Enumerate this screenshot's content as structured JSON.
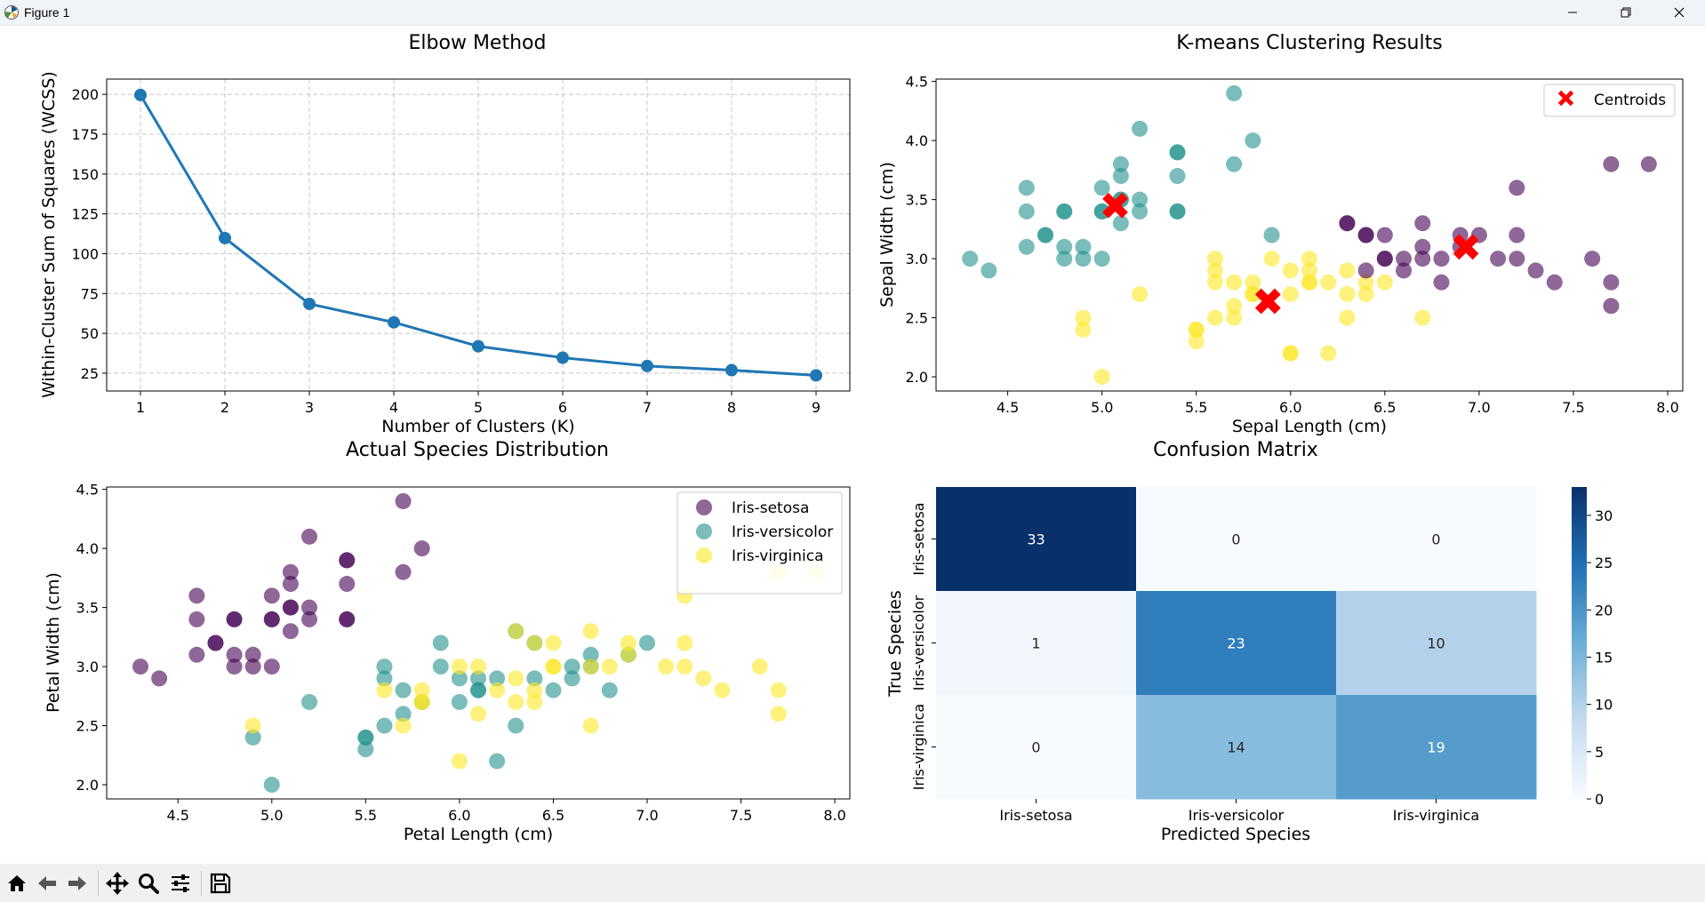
{
  "window": {
    "title": "Figure 1"
  },
  "toolbar": {
    "buttons": [
      "home-icon",
      "back-arrow-icon",
      "forward-arrow-icon",
      "pan-icon",
      "zoom-icon",
      "configure-icon",
      "save-icon"
    ]
  },
  "chart_data": [
    {
      "type": "line",
      "title": "Elbow Method",
      "xlabel": "Number of Clusters (K)",
      "ylabel": "Within-Cluster Sum of Squares (WCSS)",
      "x": [
        1,
        2,
        3,
        4,
        5,
        6,
        7,
        8,
        9
      ],
      "values": [
        199.6,
        109.8,
        68.5,
        56.9,
        41.9,
        34.7,
        29.5,
        26.9,
        23.6
      ],
      "xticks": [
        1,
        2,
        3,
        4,
        5,
        6,
        7,
        8,
        9
      ],
      "yticks": [
        25,
        50,
        75,
        100,
        125,
        150,
        175,
        200
      ],
      "xlim": [
        0.6,
        9.4
      ],
      "ylim": [
        13.8,
        209.6
      ],
      "grid": true,
      "color": "#1f77b4"
    },
    {
      "type": "scatter",
      "title": "K-means Clustering Results",
      "xlabel": "Sepal Length (cm)",
      "ylabel": "Sepal Width (cm)",
      "xticks": [
        4.5,
        5.0,
        5.5,
        6.0,
        6.5,
        7.0,
        7.5,
        8.0
      ],
      "yticks": [
        2.0,
        2.5,
        3.0,
        3.5,
        4.0,
        4.5
      ],
      "xlim": [
        4.12,
        8.08
      ],
      "ylim": [
        1.88,
        4.52
      ],
      "legend": {
        "placement": "upper right",
        "entries": [
          "Centroids"
        ]
      },
      "cluster_colors": [
        "#440154",
        "#21918c",
        "#fde725"
      ],
      "centroid_color": "#ff0000",
      "centroids": [
        [
          5.07,
          3.45
        ],
        [
          5.88,
          2.64
        ],
        [
          6.93,
          3.1
        ]
      ],
      "points": [
        [
          4.3,
          3.0,
          1
        ],
        [
          4.4,
          2.9,
          1
        ],
        [
          4.6,
          3.6,
          1
        ],
        [
          4.6,
          3.4,
          1
        ],
        [
          4.6,
          3.1,
          1
        ],
        [
          4.7,
          3.2,
          1
        ],
        [
          4.7,
          3.2,
          1
        ],
        [
          4.8,
          3.4,
          1
        ],
        [
          4.8,
          3.4,
          1
        ],
        [
          4.8,
          3.1,
          1
        ],
        [
          4.8,
          3.0,
          1
        ],
        [
          4.9,
          3.1,
          1
        ],
        [
          4.9,
          3.0,
          1
        ],
        [
          5.0,
          3.6,
          1
        ],
        [
          5.0,
          3.4,
          1
        ],
        [
          5.0,
          3.4,
          1
        ],
        [
          5.0,
          3.0,
          1
        ],
        [
          5.1,
          3.5,
          1
        ],
        [
          5.1,
          3.8,
          1
        ],
        [
          5.1,
          3.7,
          1
        ],
        [
          5.1,
          3.3,
          1
        ],
        [
          5.1,
          3.5,
          1
        ],
        [
          5.2,
          3.5,
          1
        ],
        [
          5.2,
          3.4,
          1
        ],
        [
          5.2,
          4.1,
          1
        ],
        [
          5.4,
          3.9,
          1
        ],
        [
          5.4,
          3.9,
          1
        ],
        [
          5.4,
          3.7,
          1
        ],
        [
          5.4,
          3.4,
          1
        ],
        [
          5.4,
          3.4,
          1
        ],
        [
          5.7,
          4.4,
          1
        ],
        [
          5.7,
          3.8,
          1
        ],
        [
          5.8,
          4.0,
          1
        ],
        [
          5.9,
          3.2,
          1
        ],
        [
          4.9,
          2.5,
          2
        ],
        [
          4.9,
          2.4,
          2
        ],
        [
          5.0,
          2.0,
          2
        ],
        [
          5.2,
          2.7,
          2
        ],
        [
          5.5,
          2.4,
          2
        ],
        [
          5.5,
          2.4,
          2
        ],
        [
          5.5,
          2.3,
          2
        ],
        [
          5.6,
          3.0,
          2
        ],
        [
          5.6,
          2.9,
          2
        ],
        [
          5.6,
          2.8,
          2
        ],
        [
          5.6,
          2.5,
          2
        ],
        [
          5.7,
          2.8,
          2
        ],
        [
          5.7,
          2.6,
          2
        ],
        [
          5.7,
          2.5,
          2
        ],
        [
          5.8,
          2.8,
          2
        ],
        [
          5.8,
          2.7,
          2
        ],
        [
          5.8,
          2.7,
          2
        ],
        [
          5.9,
          3.0,
          2
        ],
        [
          6.0,
          2.9,
          2
        ],
        [
          6.0,
          2.7,
          2
        ],
        [
          6.0,
          2.2,
          2
        ],
        [
          6.0,
          2.2,
          2
        ],
        [
          6.1,
          3.0,
          2
        ],
        [
          6.1,
          2.9,
          2
        ],
        [
          6.1,
          2.8,
          2
        ],
        [
          6.1,
          2.8,
          2
        ],
        [
          6.2,
          2.8,
          2
        ],
        [
          6.2,
          2.2,
          2
        ],
        [
          6.3,
          2.9,
          2
        ],
        [
          6.3,
          2.7,
          2
        ],
        [
          6.3,
          2.5,
          2
        ],
        [
          6.4,
          2.8,
          2
        ],
        [
          6.4,
          2.7,
          2
        ],
        [
          6.5,
          2.8,
          2
        ],
        [
          6.7,
          2.5,
          2
        ],
        [
          6.3,
          3.3,
          0
        ],
        [
          6.3,
          3.3,
          0
        ],
        [
          6.4,
          3.2,
          0
        ],
        [
          6.4,
          3.2,
          0
        ],
        [
          6.4,
          2.9,
          0
        ],
        [
          6.5,
          3.2,
          0
        ],
        [
          6.5,
          3.0,
          0
        ],
        [
          6.5,
          3.0,
          0
        ],
        [
          6.6,
          3.0,
          0
        ],
        [
          6.6,
          2.9,
          0
        ],
        [
          6.7,
          3.3,
          0
        ],
        [
          6.7,
          3.1,
          0
        ],
        [
          6.7,
          3.0,
          0
        ],
        [
          6.8,
          3.0,
          0
        ],
        [
          6.8,
          2.8,
          0
        ],
        [
          6.9,
          3.2,
          0
        ],
        [
          6.9,
          3.1,
          0
        ],
        [
          7.0,
          3.2,
          0
        ],
        [
          7.1,
          3.0,
          0
        ],
        [
          7.2,
          3.6,
          0
        ],
        [
          7.2,
          3.2,
          0
        ],
        [
          7.2,
          3.0,
          0
        ],
        [
          7.3,
          2.9,
          0
        ],
        [
          7.4,
          2.8,
          0
        ],
        [
          7.6,
          3.0,
          0
        ],
        [
          7.7,
          3.8,
          0
        ],
        [
          7.7,
          2.8,
          0
        ],
        [
          7.7,
          2.6,
          0
        ],
        [
          7.9,
          3.8,
          0
        ]
      ]
    },
    {
      "type": "scatter",
      "title": "Actual Species Distribution",
      "xlabel": "Petal Length (cm)",
      "ylabel": "Petal Width (cm)",
      "xticks": [
        4.5,
        5.0,
        5.5,
        6.0,
        6.5,
        7.0,
        7.5,
        8.0
      ],
      "yticks": [
        2.0,
        2.5,
        3.0,
        3.5,
        4.0,
        4.5
      ],
      "xlim": [
        4.12,
        8.08
      ],
      "ylim": [
        1.88,
        4.52
      ],
      "legend": {
        "placement": "upper right",
        "entries": [
          "Iris-setosa",
          "Iris-versicolor",
          "Iris-virginica"
        ]
      },
      "series_colors": [
        "#440154",
        "#21918c",
        "#fde725"
      ],
      "points": [
        [
          4.3,
          3.0,
          0
        ],
        [
          4.4,
          2.9,
          0
        ],
        [
          4.6,
          3.6,
          0
        ],
        [
          4.6,
          3.4,
          0
        ],
        [
          4.6,
          3.1,
          0
        ],
        [
          4.7,
          3.2,
          0
        ],
        [
          4.7,
          3.2,
          0
        ],
        [
          4.8,
          3.4,
          0
        ],
        [
          4.8,
          3.4,
          0
        ],
        [
          4.8,
          3.1,
          0
        ],
        [
          4.8,
          3.0,
          0
        ],
        [
          4.9,
          3.1,
          0
        ],
        [
          4.9,
          3.0,
          0
        ],
        [
          5.0,
          3.6,
          0
        ],
        [
          5.0,
          3.4,
          0
        ],
        [
          5.0,
          3.4,
          0
        ],
        [
          5.0,
          3.0,
          0
        ],
        [
          5.1,
          3.5,
          0
        ],
        [
          5.1,
          3.8,
          0
        ],
        [
          5.1,
          3.7,
          0
        ],
        [
          5.1,
          3.3,
          0
        ],
        [
          5.1,
          3.5,
          0
        ],
        [
          5.2,
          3.5,
          0
        ],
        [
          5.2,
          3.4,
          0
        ],
        [
          5.2,
          4.1,
          0
        ],
        [
          5.4,
          3.9,
          0
        ],
        [
          5.4,
          3.9,
          0
        ],
        [
          5.4,
          3.7,
          0
        ],
        [
          5.4,
          3.4,
          0
        ],
        [
          5.4,
          3.4,
          0
        ],
        [
          5.7,
          4.4,
          0
        ],
        [
          5.7,
          3.8,
          0
        ],
        [
          5.8,
          4.0,
          0
        ],
        [
          4.9,
          2.4,
          1
        ],
        [
          5.0,
          2.0,
          1
        ],
        [
          5.2,
          2.7,
          1
        ],
        [
          5.5,
          2.4,
          1
        ],
        [
          5.5,
          2.4,
          1
        ],
        [
          5.5,
          2.3,
          1
        ],
        [
          5.6,
          3.0,
          1
        ],
        [
          5.6,
          2.9,
          1
        ],
        [
          5.6,
          2.5,
          1
        ],
        [
          5.7,
          2.8,
          1
        ],
        [
          5.7,
          2.6,
          1
        ],
        [
          5.8,
          2.7,
          1
        ],
        [
          5.9,
          3.2,
          1
        ],
        [
          5.9,
          3.0,
          1
        ],
        [
          6.0,
          2.9,
          1
        ],
        [
          6.0,
          2.7,
          1
        ],
        [
          6.1,
          2.9,
          1
        ],
        [
          6.1,
          2.8,
          1
        ],
        [
          6.1,
          2.8,
          1
        ],
        [
          6.2,
          2.2,
          1
        ],
        [
          6.2,
          2.9,
          1
        ],
        [
          6.3,
          3.3,
          1
        ],
        [
          6.3,
          2.5,
          1
        ],
        [
          6.4,
          3.2,
          1
        ],
        [
          6.4,
          2.9,
          1
        ],
        [
          6.5,
          2.8,
          1
        ],
        [
          6.6,
          3.0,
          1
        ],
        [
          6.6,
          2.9,
          1
        ],
        [
          6.7,
          3.1,
          1
        ],
        [
          6.7,
          3.0,
          1
        ],
        [
          6.8,
          2.8,
          1
        ],
        [
          6.9,
          3.1,
          1
        ],
        [
          7.0,
          3.2,
          1
        ],
        [
          4.9,
          2.5,
          2
        ],
        [
          5.6,
          2.8,
          2
        ],
        [
          5.7,
          2.5,
          2
        ],
        [
          5.8,
          2.8,
          2
        ],
        [
          5.8,
          2.7,
          2
        ],
        [
          5.8,
          2.7,
          2
        ],
        [
          6.0,
          2.2,
          2
        ],
        [
          6.0,
          3.0,
          2
        ],
        [
          6.1,
          3.0,
          2
        ],
        [
          6.1,
          2.6,
          2
        ],
        [
          6.2,
          2.8,
          2
        ],
        [
          6.3,
          3.3,
          2
        ],
        [
          6.3,
          2.9,
          2
        ],
        [
          6.3,
          2.7,
          2
        ],
        [
          6.4,
          3.2,
          2
        ],
        [
          6.4,
          2.8,
          2
        ],
        [
          6.4,
          2.7,
          2
        ],
        [
          6.5,
          3.2,
          2
        ],
        [
          6.5,
          3.0,
          2
        ],
        [
          6.5,
          3.0,
          2
        ],
        [
          6.7,
          3.3,
          2
        ],
        [
          6.7,
          3.0,
          2
        ],
        [
          6.7,
          2.5,
          2
        ],
        [
          6.8,
          3.0,
          2
        ],
        [
          6.9,
          3.2,
          2
        ],
        [
          6.9,
          3.1,
          2
        ],
        [
          7.1,
          3.0,
          2
        ],
        [
          7.2,
          3.6,
          2
        ],
        [
          7.2,
          3.2,
          2
        ],
        [
          7.2,
          3.0,
          2
        ],
        [
          7.3,
          2.9,
          2
        ],
        [
          7.4,
          2.8,
          2
        ],
        [
          7.6,
          3.0,
          2
        ],
        [
          7.7,
          3.8,
          2
        ],
        [
          7.7,
          2.8,
          2
        ],
        [
          7.7,
          2.6,
          2
        ],
        [
          7.9,
          3.8,
          2
        ]
      ]
    },
    {
      "type": "heatmap",
      "title": "Confusion Matrix",
      "xlabel": "Predicted Species",
      "ylabel": "True Species",
      "x_categories": [
        "Iris-setosa",
        "Iris-versicolor",
        "Iris-virginica"
      ],
      "y_categories": [
        "Iris-setosa",
        "Iris-versicolor",
        "Iris-virginica"
      ],
      "matrix": [
        [
          33,
          0,
          0
        ],
        [
          1,
          23,
          10
        ],
        [
          0,
          14,
          19
        ]
      ],
      "colormap": "Blues",
      "colorbar_ticks": [
        0,
        5,
        10,
        15,
        20,
        25,
        30
      ],
      "vmin": 0,
      "vmax": 33
    }
  ]
}
